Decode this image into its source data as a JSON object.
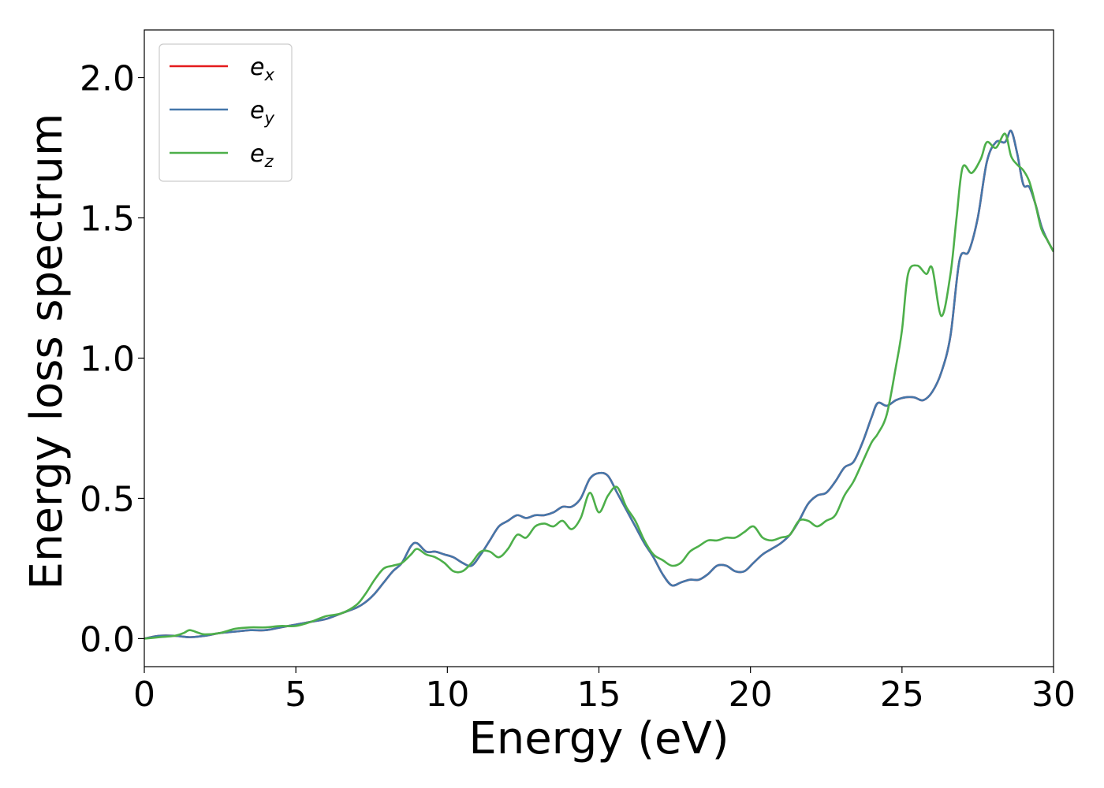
{
  "chart_data": {
    "type": "line",
    "title": "",
    "xlabel": "Energy (eV)",
    "ylabel": "Energy loss spectrum",
    "xlim": [
      0,
      30
    ],
    "ylim": [
      -0.1,
      2.17
    ],
    "xticks": [
      0,
      5,
      10,
      15,
      20,
      25,
      30
    ],
    "xtick_labels": [
      "0",
      "5",
      "10",
      "15",
      "20",
      "25",
      "30"
    ],
    "yticks": [
      0.0,
      0.5,
      1.0,
      1.5,
      2.0
    ],
    "ytick_labels": [
      "0.0",
      "0.5",
      "1.0",
      "1.5",
      "2.0"
    ],
    "grid": false,
    "legend_position": "top-left",
    "series": [
      {
        "name": "e_x",
        "legend_base": "e",
        "legend_sub": "x",
        "color": "#e41a1c",
        "x": [
          0,
          0.5,
          1,
          1.5,
          2,
          2.5,
          3,
          3.5,
          4,
          4.5,
          5,
          5.5,
          6,
          6.5,
          7,
          7.3,
          7.6,
          7.9,
          8.2,
          8.5,
          8.8,
          9.0,
          9.3,
          9.6,
          9.9,
          10.2,
          10.5,
          10.8,
          11.1,
          11.4,
          11.7,
          12.0,
          12.3,
          12.6,
          12.9,
          13.2,
          13.5,
          13.8,
          14.1,
          14.4,
          14.7,
          15.0,
          15.3,
          15.6,
          15.9,
          16.2,
          16.5,
          16.8,
          17.1,
          17.4,
          17.7,
          18.0,
          18.3,
          18.6,
          18.9,
          19.2,
          19.5,
          19.8,
          20.1,
          20.4,
          20.7,
          21.0,
          21.3,
          21.6,
          21.9,
          22.2,
          22.5,
          22.8,
          23.1,
          23.4,
          23.7,
          24.0,
          24.2,
          24.5,
          24.8,
          25.1,
          25.4,
          25.7,
          26.0,
          26.3,
          26.6,
          26.9,
          27.2,
          27.5,
          27.8,
          28.1,
          28.4,
          28.6,
          28.8,
          29.0,
          29.2,
          29.4,
          29.6,
          29.8,
          30.0
        ],
        "values": [
          0.0,
          0.01,
          0.01,
          0.005,
          0.01,
          0.02,
          0.025,
          0.03,
          0.03,
          0.04,
          0.05,
          0.06,
          0.07,
          0.09,
          0.11,
          0.13,
          0.16,
          0.2,
          0.24,
          0.27,
          0.33,
          0.34,
          0.31,
          0.31,
          0.3,
          0.29,
          0.27,
          0.26,
          0.3,
          0.35,
          0.4,
          0.42,
          0.44,
          0.43,
          0.44,
          0.44,
          0.45,
          0.47,
          0.47,
          0.5,
          0.57,
          0.59,
          0.58,
          0.52,
          0.46,
          0.4,
          0.34,
          0.29,
          0.23,
          0.19,
          0.2,
          0.21,
          0.21,
          0.23,
          0.26,
          0.26,
          0.24,
          0.24,
          0.27,
          0.3,
          0.32,
          0.34,
          0.37,
          0.42,
          0.48,
          0.51,
          0.52,
          0.56,
          0.61,
          0.63,
          0.7,
          0.79,
          0.84,
          0.83,
          0.85,
          0.86,
          0.86,
          0.85,
          0.88,
          0.95,
          1.08,
          1.35,
          1.38,
          1.5,
          1.7,
          1.77,
          1.77,
          1.81,
          1.73,
          1.62,
          1.61,
          1.55,
          1.47,
          1.42,
          1.38
        ]
      },
      {
        "name": "e_y",
        "legend_base": "e",
        "legend_sub": "y",
        "color": "#4477aa",
        "x": [
          0,
          0.5,
          1,
          1.5,
          2,
          2.5,
          3,
          3.5,
          4,
          4.5,
          5,
          5.5,
          6,
          6.5,
          7,
          7.3,
          7.6,
          7.9,
          8.2,
          8.5,
          8.8,
          9.0,
          9.3,
          9.6,
          9.9,
          10.2,
          10.5,
          10.8,
          11.1,
          11.4,
          11.7,
          12.0,
          12.3,
          12.6,
          12.9,
          13.2,
          13.5,
          13.8,
          14.1,
          14.4,
          14.7,
          15.0,
          15.3,
          15.6,
          15.9,
          16.2,
          16.5,
          16.8,
          17.1,
          17.4,
          17.7,
          18.0,
          18.3,
          18.6,
          18.9,
          19.2,
          19.5,
          19.8,
          20.1,
          20.4,
          20.7,
          21.0,
          21.3,
          21.6,
          21.9,
          22.2,
          22.5,
          22.8,
          23.1,
          23.4,
          23.7,
          24.0,
          24.2,
          24.5,
          24.8,
          25.1,
          25.4,
          25.7,
          26.0,
          26.3,
          26.6,
          26.9,
          27.2,
          27.5,
          27.8,
          28.1,
          28.4,
          28.6,
          28.8,
          29.0,
          29.2,
          29.4,
          29.6,
          29.8,
          30.0
        ],
        "values": [
          0.0,
          0.01,
          0.01,
          0.005,
          0.01,
          0.02,
          0.025,
          0.03,
          0.03,
          0.04,
          0.05,
          0.06,
          0.07,
          0.09,
          0.11,
          0.13,
          0.16,
          0.2,
          0.24,
          0.27,
          0.33,
          0.34,
          0.31,
          0.31,
          0.3,
          0.29,
          0.27,
          0.26,
          0.3,
          0.35,
          0.4,
          0.42,
          0.44,
          0.43,
          0.44,
          0.44,
          0.45,
          0.47,
          0.47,
          0.5,
          0.57,
          0.59,
          0.58,
          0.52,
          0.46,
          0.4,
          0.34,
          0.29,
          0.23,
          0.19,
          0.2,
          0.21,
          0.21,
          0.23,
          0.26,
          0.26,
          0.24,
          0.24,
          0.27,
          0.3,
          0.32,
          0.34,
          0.37,
          0.42,
          0.48,
          0.51,
          0.52,
          0.56,
          0.61,
          0.63,
          0.7,
          0.79,
          0.84,
          0.83,
          0.85,
          0.86,
          0.86,
          0.85,
          0.88,
          0.95,
          1.08,
          1.35,
          1.38,
          1.5,
          1.7,
          1.77,
          1.77,
          1.81,
          1.73,
          1.62,
          1.61,
          1.55,
          1.47,
          1.42,
          1.38
        ]
      },
      {
        "name": "e_z",
        "legend_base": "e",
        "legend_sub": "z",
        "color": "#4daf4a",
        "x": [
          0,
          0.5,
          1,
          1.3,
          1.5,
          1.8,
          2,
          2.5,
          3,
          3.5,
          4,
          4.5,
          5,
          5.5,
          6,
          6.5,
          7,
          7.3,
          7.6,
          7.9,
          8.2,
          8.5,
          8.8,
          9.0,
          9.3,
          9.6,
          9.9,
          10.2,
          10.5,
          10.8,
          11.1,
          11.4,
          11.7,
          12.0,
          12.3,
          12.6,
          12.9,
          13.2,
          13.5,
          13.8,
          14.1,
          14.4,
          14.7,
          15.0,
          15.3,
          15.6,
          15.9,
          16.2,
          16.5,
          16.8,
          17.1,
          17.4,
          17.7,
          18.0,
          18.3,
          18.6,
          18.9,
          19.2,
          19.5,
          19.8,
          20.1,
          20.4,
          20.7,
          21.0,
          21.3,
          21.6,
          21.9,
          22.2,
          22.5,
          22.8,
          23.1,
          23.4,
          23.7,
          24.0,
          24.2,
          24.5,
          24.8,
          25.0,
          25.2,
          25.5,
          25.8,
          26.0,
          26.3,
          26.6,
          26.8,
          27.0,
          27.3,
          27.6,
          27.8,
          28.1,
          28.4,
          28.6,
          28.8,
          29.0,
          29.2,
          29.4,
          29.6,
          29.8,
          30.0
        ],
        "values": [
          0.0,
          0.005,
          0.01,
          0.02,
          0.03,
          0.02,
          0.015,
          0.02,
          0.035,
          0.04,
          0.04,
          0.045,
          0.045,
          0.06,
          0.08,
          0.09,
          0.12,
          0.16,
          0.21,
          0.25,
          0.26,
          0.27,
          0.3,
          0.32,
          0.3,
          0.29,
          0.27,
          0.24,
          0.24,
          0.27,
          0.31,
          0.31,
          0.29,
          0.32,
          0.37,
          0.36,
          0.4,
          0.41,
          0.4,
          0.42,
          0.39,
          0.43,
          0.52,
          0.45,
          0.51,
          0.54,
          0.47,
          0.42,
          0.35,
          0.3,
          0.28,
          0.26,
          0.27,
          0.31,
          0.33,
          0.35,
          0.35,
          0.36,
          0.36,
          0.38,
          0.4,
          0.36,
          0.35,
          0.36,
          0.37,
          0.42,
          0.42,
          0.4,
          0.42,
          0.44,
          0.51,
          0.56,
          0.63,
          0.7,
          0.73,
          0.8,
          0.97,
          1.1,
          1.3,
          1.33,
          1.3,
          1.32,
          1.15,
          1.3,
          1.5,
          1.68,
          1.66,
          1.71,
          1.77,
          1.75,
          1.8,
          1.72,
          1.69,
          1.67,
          1.63,
          1.55,
          1.46,
          1.42,
          1.38
        ]
      }
    ]
  }
}
